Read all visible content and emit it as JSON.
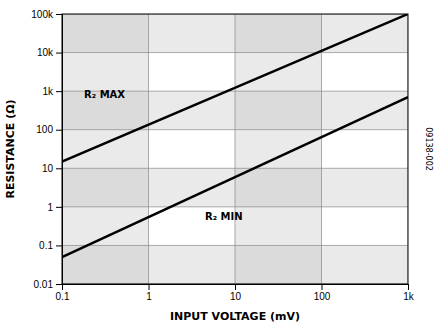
{
  "chart_data": {
    "type": "line",
    "xlabel": "INPUT VOLTAGE (mV)",
    "ylabel": "RESISTANCE (Ω)",
    "log": true,
    "grid": true,
    "xlim": [
      0.1,
      1000
    ],
    "ylim": [
      0.01,
      100000
    ],
    "xticks": [
      0.1,
      1,
      10,
      100,
      {
        "value": 1000,
        "label": "1k"
      }
    ],
    "yticks": [
      0.01,
      0.1,
      1,
      10,
      100,
      {
        "value": 1000,
        "label": "1k"
      },
      {
        "value": 10000,
        "label": "10k"
      },
      {
        "value": 100000,
        "label": "100k"
      }
    ],
    "x": [
      0.1,
      1000
    ],
    "series": [
      {
        "color": "#000000",
        "values": [
          15.0,
          100000.0
        ]
      },
      {
        "color": "#000000",
        "values": [
          0.05,
          700.0
        ]
      }
    ],
    "x_bands": [
      [
        0.1,
        1
      ],
      [
        10,
        100
      ]
    ],
    "y_bands": [
      [
        0.01,
        0.1
      ],
      [
        1,
        10
      ],
      [
        100,
        1000
      ],
      [
        10000,
        100000
      ]
    ],
    "annotations": [
      {
        "text": "R₂ MAX",
        "x": 0.18,
        "y": 650
      },
      {
        "text": "R₂ MIN",
        "x": 4.5,
        "y": 0.45
      },
      {
        "text": "09138-002"
      }
    ]
  }
}
